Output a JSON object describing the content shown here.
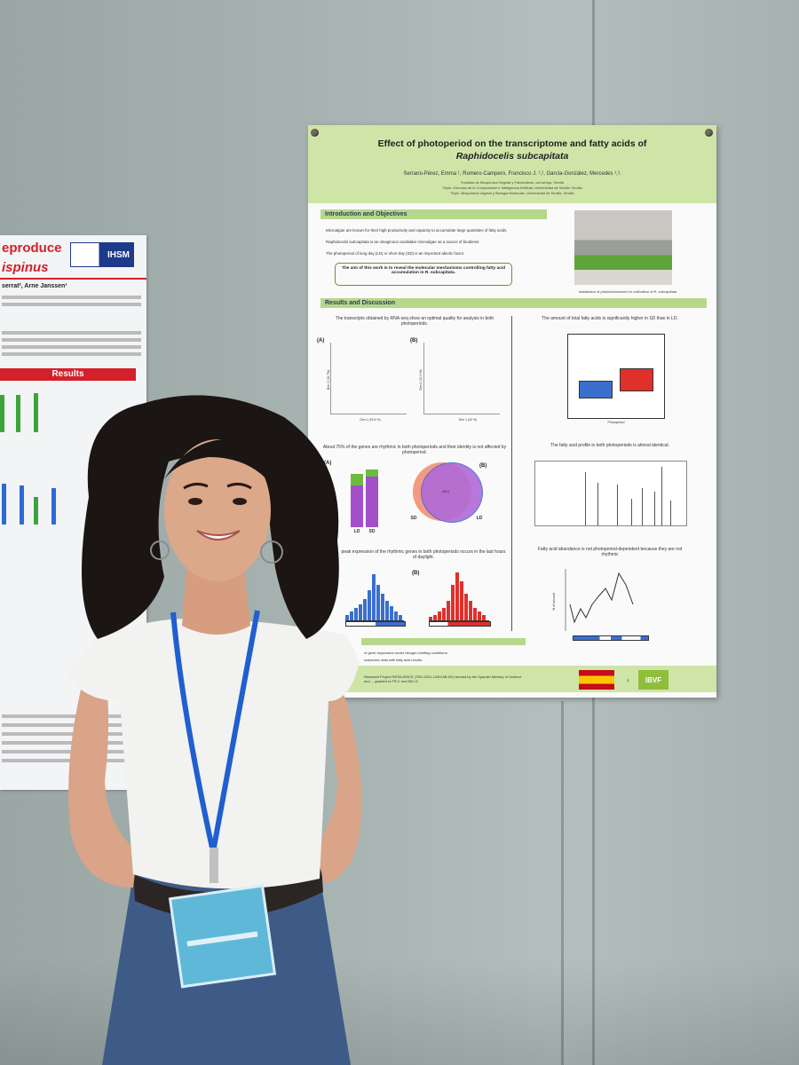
{
  "left_poster": {
    "title_line1": "eproduce",
    "title_line2": "ispinus",
    "logo": "IHSM",
    "authors": "serrat², Arne Janssen¹",
    "results_heading": "Results"
  },
  "poster": {
    "title": "Effect of photoperiod on the transcriptome and fatty acids of",
    "title_species": "Raphidocelis subcapitata",
    "authors": "Serrano-Pérez, Emma ¹, Romero-Campero, Francisco J. ¹,², García-González, Mercedes ¹,³.",
    "affiliations": [
      "¹Instituto de Bioquímica Vegetal y Fotosíntesis, cicCartuja, Sevilla",
      "²Dpto. Ciencias de la Computación e Inteligencia Artificial, Universidad de Sevilla, Sevilla",
      "³Dpto. Bioquímica Vegetal y Biología Molecular, Universidad de Sevilla, Sevilla"
    ],
    "intro_heading": "Introduction and Objectives",
    "bullets": [
      "Microalgae are known for their high productivity and capacity to accumulate large quantities of fatty acids.",
      "Raphidocelis subcapitata is an oleaginous candidate microalgae as a source of biodiesel.",
      "The photoperiod of long day (LD) or short day (SD) is an important abiotic factor."
    ],
    "aim_text": "The aim of this work is to reveal the molecular mechanisms controlling fatty acid accumulation in R. subcapitata.",
    "photo_caption": "Installation of photobioreactors for cultivation of R. subcapitata",
    "results_heading": "Results and Discussion",
    "rnaseq_caption": "The transcripts obtained by RNA-seq show an optimal quality for analysis in both photoperiods.",
    "fatty_total_caption": "The amount of total fatty acids is significantly higher in SD than in LD.",
    "rhythmic_caption": "About 75% of the genes are rhythmic in both photoperiods and their identity is not affected by photoperiod.",
    "profile_caption": "The fatty acid profile in both photoperiods is almost identical.",
    "peak_caption": "peak expression of the rhythmic genes in both photoperiods occurs in the last hours of daylight.",
    "abundance_caption": "Fatty acid abundance is not photoperiod-dependent because they are not rhythmic",
    "panel_a": "(A)",
    "panel_b": "(B)",
    "dim1": "Dim 1 (15.5 %)",
    "dim1b": "Dim 1 (42 %)",
    "dim2": "Dim 2 (18.7%)",
    "dim2b": "Dim 2 (10.3 %)",
    "ld": "LD",
    "sd": "SD",
    "venn_center": "4011",
    "photoperiod": "Photoperiod",
    "pct_label": "% of amount",
    "conclusion1": "of gene expression under nitrogen-limiting conditions.",
    "conclusion2": "scriptomic data with fatty acid results.",
    "funding": "Research Project RESILIENCE (TED-2021-129019B-I00) funded by the Spanish Ministry of Science and ... granted to FR-C and MG-G.",
    "logo_ibvf": "IBVF"
  },
  "colors": {
    "poster_green": "#cfe5a8",
    "section_green": "#b7d78a",
    "ld_blue": "#3a6fd0",
    "sd_red": "#e0302a",
    "venn_purple": "#b06ad8",
    "lanyard": "#1f5fcf"
  }
}
